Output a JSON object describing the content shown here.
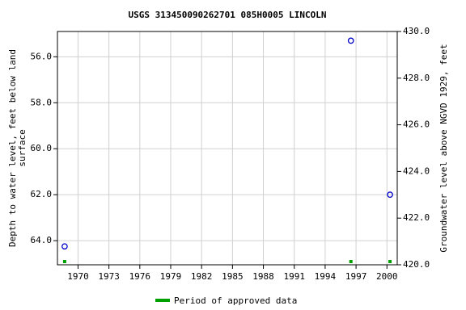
{
  "chart_data": {
    "type": "scatter",
    "title": "USGS 313450090262701 085H0005  LINCOLN",
    "ylabel": "Depth to water level, feet below land\nsurface",
    "y2label": "Groundwater level above NGVD 1929, feet",
    "x": [
      1968.7,
      1996.5,
      2000.3
    ],
    "values": [
      64.25,
      55.3,
      62.0
    ],
    "color": "#0000cc",
    "approved": {
      "name": "Period of approved data",
      "color": "#00a000",
      "x": [
        1968.7,
        1996.5,
        2000.3
      ]
    },
    "xlim": [
      1968,
      2001
    ],
    "xticks": [
      1970,
      1973,
      1976,
      1979,
      1982,
      1985,
      1988,
      1991,
      1994,
      1997,
      2000
    ],
    "ylim": [
      65.05,
      54.9
    ],
    "yticks": [
      {
        "value": 56,
        "label": "56.0"
      },
      {
        "value": 58,
        "label": "58.0"
      },
      {
        "value": 60,
        "label": "60.0"
      },
      {
        "value": 62,
        "label": "62.0"
      },
      {
        "value": 64,
        "label": "64.0"
      }
    ],
    "y2lim": [
      420,
      430
    ],
    "y2ticks": [
      {
        "value": 420,
        "label": "420.0"
      },
      {
        "value": 422,
        "label": "422.0"
      },
      {
        "value": 424,
        "label": "424.0"
      },
      {
        "value": 426,
        "label": "426.0"
      },
      {
        "value": 428,
        "label": "428.0"
      },
      {
        "value": 430,
        "label": "430.0"
      }
    ],
    "grid": true
  }
}
